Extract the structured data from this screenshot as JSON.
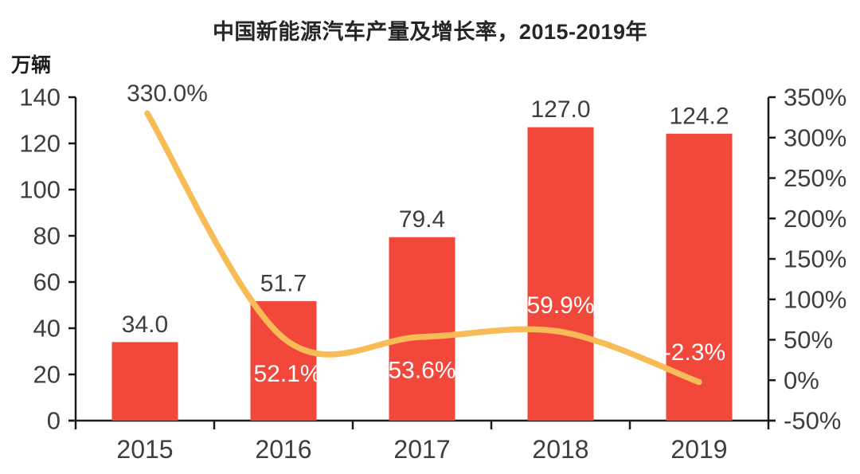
{
  "title": "中国新能源汽车产量及增长率，2015-2019年",
  "chart_data": {
    "type": "bar+line",
    "title": "中国新能源汽车产量及增长率，2015-2019年",
    "left_axis_unit": "万辆",
    "categories": [
      "2015",
      "2016",
      "2017",
      "2018",
      "2019"
    ],
    "series": [
      {
        "name": "production-bars",
        "type": "bar",
        "axis": "left",
        "values": [
          34.0,
          51.7,
          79.4,
          127.0,
          124.2
        ],
        "labels": [
          "34.0",
          "51.7",
          "79.4",
          "127.0",
          "124.2"
        ],
        "color": "#F2483B"
      },
      {
        "name": "growth-rate-line",
        "type": "line",
        "axis": "right",
        "values": [
          330.0,
          52.1,
          53.6,
          59.9,
          -2.3
        ],
        "labels": [
          "330.0%",
          "52.1%",
          "53.6%",
          "59.9%",
          "-2.3%"
        ],
        "color": "#F8BC56"
      }
    ],
    "left_axis": {
      "min": 0,
      "max": 140,
      "step": 20,
      "ticks": [
        "0",
        "20",
        "40",
        "60",
        "80",
        "100",
        "120",
        "140"
      ]
    },
    "right_axis": {
      "min": -50,
      "max": 350,
      "step": 50,
      "ticks": [
        "-50%",
        "0%",
        "50%",
        "100%",
        "150%",
        "200%",
        "250%",
        "300%",
        "350%"
      ]
    },
    "grid": false,
    "legend": "none",
    "colors": {
      "bar": "#F2483B",
      "line": "#F8BC56",
      "text": "#3E3E3E",
      "axis": "#1A1A1A",
      "label_on_bar": "#FFFFFF",
      "background": "#FFFFFF"
    }
  }
}
